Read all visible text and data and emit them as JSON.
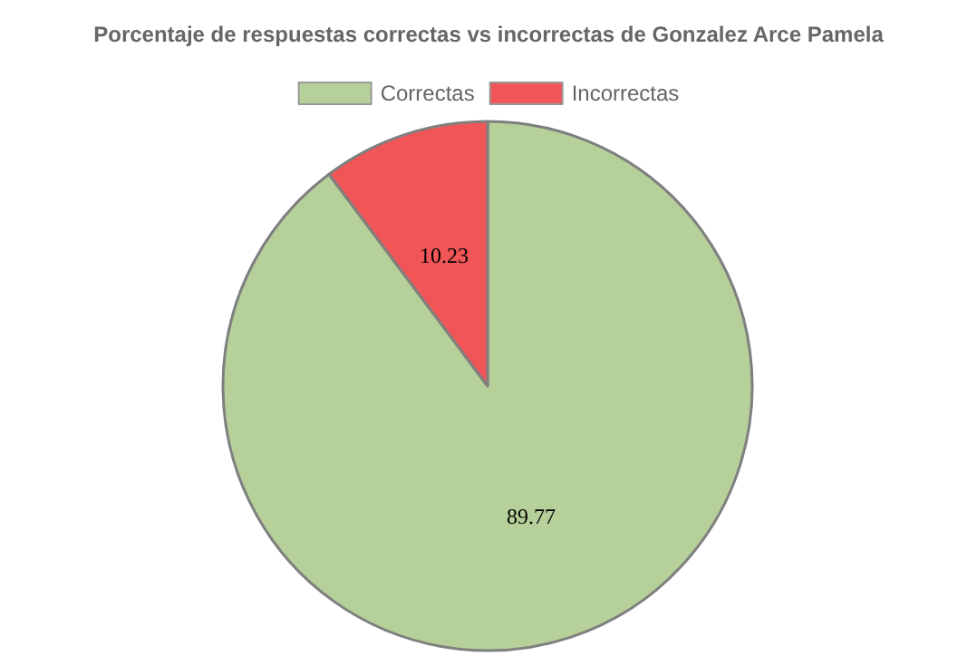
{
  "chart_data": {
    "type": "pie",
    "title": "Porcentaje de respuestas correctas vs incorrectas de Gonzalez Arce Pamela",
    "categories": [
      "Correctas",
      "Incorrectas"
    ],
    "values": [
      89.77,
      10.23
    ],
    "colors": [
      "#b6d09a",
      "#f05557"
    ],
    "data_labels": true,
    "legend": "top"
  }
}
